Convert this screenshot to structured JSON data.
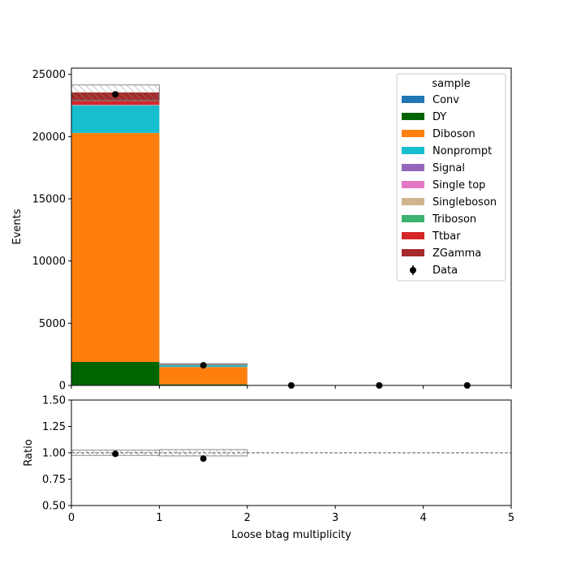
{
  "chart_data": [
    {
      "type": "bar",
      "stacked": true,
      "bin_edges": [
        0,
        1,
        2,
        3,
        4,
        5
      ],
      "xlim": [
        0,
        5
      ],
      "ylim": [
        0,
        25500
      ],
      "xlabel": "",
      "ylabel": "Events",
      "x_ticks": [
        "0",
        "1",
        "2",
        "3",
        "4",
        "5"
      ],
      "y_ticks": [
        0,
        5000,
        10000,
        15000,
        20000,
        25000
      ],
      "legend": {
        "title": "sample",
        "placement": "top-right"
      },
      "series": [
        {
          "name": "Conv",
          "color": "#1f77b4",
          "values": [
            40,
            5,
            0,
            0,
            0
          ]
        },
        {
          "name": "DY",
          "color": "#006400",
          "values": [
            1850,
            80,
            0,
            0,
            0
          ]
        },
        {
          "name": "Diboson",
          "color": "#ff7f0e",
          "values": [
            18400,
            1400,
            0,
            0,
            0
          ]
        },
        {
          "name": "Nonprompt",
          "color": "#17becf",
          "values": [
            2200,
            200,
            0,
            0,
            0
          ]
        },
        {
          "name": "Signal",
          "color": "#9467bd",
          "values": [
            30,
            5,
            0,
            0,
            0
          ]
        },
        {
          "name": "Single top",
          "color": "#e377c2",
          "values": [
            10,
            5,
            0,
            0,
            0
          ]
        },
        {
          "name": "Singleboson",
          "color": "#d2b48c",
          "values": [
            10,
            0,
            0,
            0,
            0
          ]
        },
        {
          "name": "Triboson",
          "color": "#3cb371",
          "values": [
            20,
            3,
            0,
            0,
            0
          ]
        },
        {
          "name": "Ttbar",
          "color": "#d62728",
          "values": [
            270,
            12,
            0,
            0,
            0
          ]
        },
        {
          "name": "ZGamma",
          "color": "#a52a2a",
          "values": [
            720,
            30,
            0,
            0,
            0
          ]
        }
      ],
      "uncertainty": {
        "color": "#888888",
        "hatch": "////",
        "up": [
          24150,
          1750,
          0,
          0,
          0
        ],
        "down": [
          22900,
          1630,
          0,
          0,
          0
        ]
      },
      "data": {
        "name": "Data",
        "x": [
          0.5,
          1.5,
          2.5,
          3.5,
          4.5
        ],
        "y": [
          23400,
          1620,
          0,
          0,
          0
        ]
      }
    },
    {
      "type": "scatter",
      "xlim": [
        0,
        5
      ],
      "ylim": [
        0.5,
        1.5
      ],
      "xlabel": "Loose btag multiplicity",
      "ylabel": "Ratio",
      "x_ticks": [
        "0",
        "1",
        "2",
        "3",
        "4",
        "5"
      ],
      "y_ticks": [
        "0.50",
        "0.75",
        "1.00",
        "1.25",
        "1.50"
      ],
      "reference_line": 1.0,
      "uncertainty_band": {
        "up": [
          1.025,
          1.03,
          1.0,
          1.0,
          1.0
        ],
        "down": [
          0.975,
          0.97,
          1.0,
          1.0,
          1.0
        ]
      },
      "points": {
        "x": [
          0.5,
          1.5
        ],
        "y": [
          0.99,
          0.945
        ]
      }
    }
  ]
}
